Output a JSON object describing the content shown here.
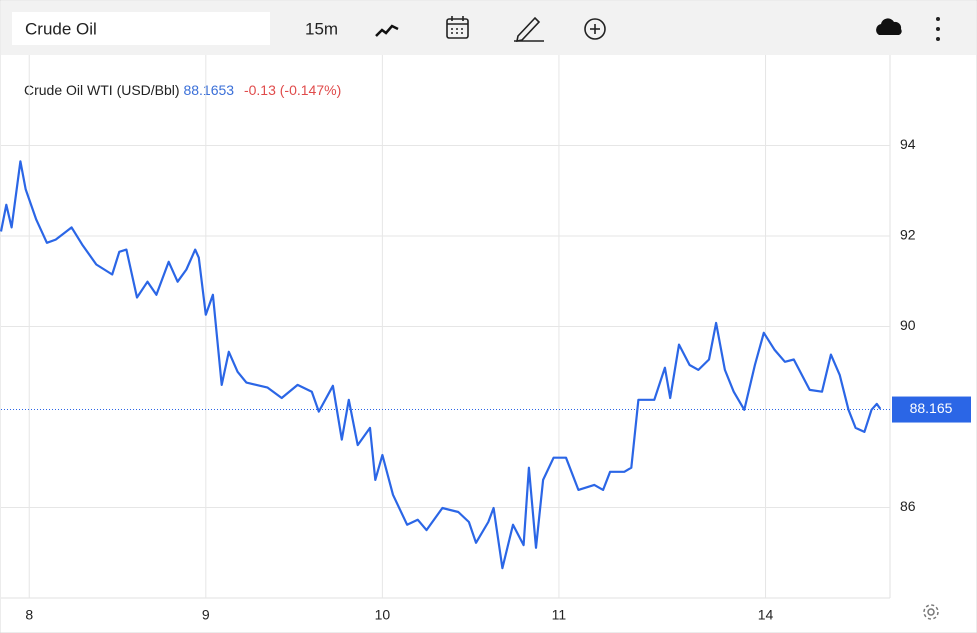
{
  "toolbar": {
    "search": "Crude Oil",
    "interval": "15m"
  },
  "chart_data": {
    "type": "line",
    "title": "Crude Oil WTI (USD/Bbl)",
    "price": "88.1653",
    "change": "-0.13 (-0.147%)",
    "last_price": 88.165,
    "x": [
      -0.16,
      -0.13,
      -0.1,
      -0.05,
      -0.02,
      0.04,
      0.1,
      0.15,
      0.21,
      0.24,
      0.3,
      0.38,
      0.47,
      0.51,
      0.55,
      0.61,
      0.67,
      0.72,
      0.79,
      0.84,
      0.89,
      0.94,
      0.96,
      1.0,
      1.04,
      1.09,
      1.13,
      1.18,
      1.23,
      1.35,
      1.43,
      1.52,
      1.6,
      1.64,
      1.72,
      1.77,
      1.81,
      1.86,
      1.93,
      1.96,
      2.0,
      2.06,
      2.14,
      2.2,
      2.25,
      2.34,
      2.43,
      2.49,
      2.53,
      2.6,
      2.63,
      2.68,
      2.74,
      2.8,
      2.83,
      2.87,
      2.91,
      2.97,
      3.04,
      3.11,
      3.2,
      3.25,
      3.29,
      3.37,
      3.41,
      3.45,
      3.54,
      3.6,
      3.63,
      3.68,
      3.74,
      3.79,
      3.85,
      3.89,
      3.94,
      3.99,
      4.05,
      4.11,
      4.16,
      4.22,
      4.28,
      4.33,
      4.42,
      4.49,
      4.54,
      4.59,
      4.64,
      4.68,
      4.73,
      4.77,
      4.8,
      4.82
    ],
    "series": [
      {
        "name": "Crude Oil WTI",
        "color": "#2b66e6",
        "values": [
          92.1,
          92.69,
          92.19,
          93.65,
          93.03,
          92.36,
          91.85,
          91.92,
          92.1,
          92.19,
          91.81,
          91.37,
          91.15,
          91.65,
          91.7,
          90.64,
          90.99,
          90.7,
          91.43,
          90.99,
          91.26,
          91.7,
          91.52,
          90.26,
          90.7,
          88.71,
          89.44,
          89.0,
          88.76,
          88.65,
          88.42,
          88.71,
          88.56,
          88.12,
          88.69,
          87.5,
          88.38,
          87.38,
          87.76,
          86.61,
          87.16,
          86.28,
          85.62,
          85.73,
          85.5,
          85.99,
          85.9,
          85.68,
          85.22,
          85.68,
          85.99,
          84.66,
          85.62,
          85.17,
          86.88,
          85.11,
          86.61,
          87.1,
          87.1,
          86.39,
          86.5,
          86.39,
          86.79,
          86.79,
          86.88,
          88.38,
          88.38,
          89.09,
          88.42,
          89.6,
          89.15,
          89.04,
          89.27,
          90.08,
          89.04,
          88.56,
          88.16,
          89.15,
          89.86,
          89.49,
          89.22,
          89.27,
          88.6,
          88.56,
          89.38,
          88.93,
          88.16,
          87.76,
          87.67,
          88.16,
          88.29,
          88.18
        ]
      }
    ],
    "xlim": [
      -0.16,
      4.875
    ],
    "xticks": [
      {
        "value": 0,
        "label": "8"
      },
      {
        "value": 1,
        "label": "9"
      },
      {
        "value": 2,
        "label": "10"
      },
      {
        "value": 3,
        "label": "11"
      },
      {
        "value": 4.17,
        "label": "14"
      }
    ],
    "ylim": [
      84,
      96
    ],
    "yticks": [
      86,
      90,
      92,
      94
    ],
    "grid": true
  }
}
